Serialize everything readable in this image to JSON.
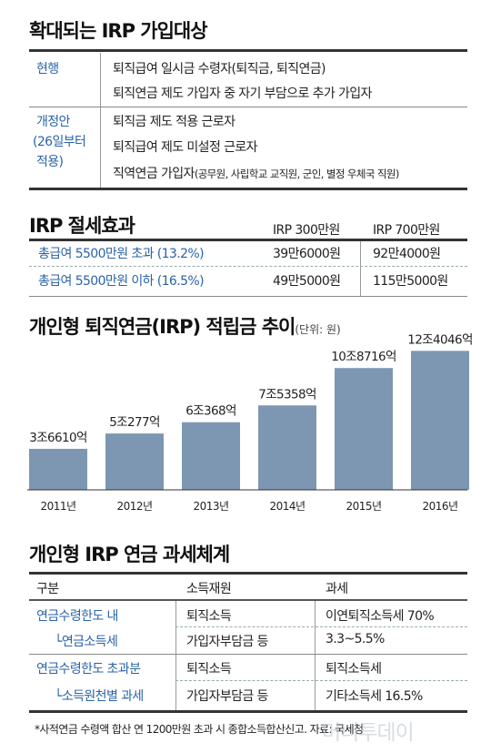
{
  "section1": {
    "title": "확대되는 IRP 가입대상",
    "current_label": "현행",
    "current_items": [
      "퇴직급여 일시금 수령자(퇴직금, 퇴직연금)",
      "퇴직연금 제도 가입자 중 자기 부담으로 추가 가입자"
    ],
    "revised_label": [
      "개정안",
      "(26일부터",
      "적용)"
    ],
    "revised_items": [
      "퇴직금 제도 적용 근로자",
      "퇴직급여 제도 미설정 근로자"
    ],
    "revised_last_prefix": "직역연금 가입자",
    "revised_last_suffix": "(공무원, 사립학교 교직원, 군인, 별정 우체국 직원)"
  },
  "section2": {
    "title": "IRP 절세효과",
    "col_headers": [
      "IRP 300만원",
      "IRP 700만원"
    ],
    "rows": [
      {
        "label": "총급여 5500만원 초과 (13.2%)",
        "v1": "39만6000원",
        "v2": "92만4000원"
      },
      {
        "label": "총급여 5500만원 이하 (16.5%)",
        "v1": "49만5000원",
        "v2": "115만5000원"
      }
    ]
  },
  "chart_data": {
    "type": "bar",
    "title": "개인형 퇴직연금(IRP) 적립금 추이",
    "unit_note": "(단위: 원)",
    "categories": [
      "2011년",
      "2012년",
      "2013년",
      "2014년",
      "2015년",
      "2016년"
    ],
    "values": [
      3.661,
      5.0277,
      6.0368,
      7.5358,
      10.8716,
      12.4046
    ],
    "value_unit": "조원",
    "labels": [
      "3조6610억",
      "5조277억",
      "6조368억",
      "7조5358억",
      "10조8716억",
      "12조4046억"
    ],
    "ylim": [
      0,
      13
    ],
    "bar_color": "#7d97b2"
  },
  "section3": {
    "title": "개인형 IRP 연금 과세체계",
    "headers": [
      "구분",
      "소득재원",
      "과세"
    ],
    "groups": [
      {
        "label": "연금수령한도 내",
        "sub": "└연금소득세",
        "rows": [
          [
            "퇴직소득",
            "이연퇴직소득세 70%"
          ],
          [
            "가입자부담금 등",
            "3.3~5.5%"
          ]
        ]
      },
      {
        "label": "연금수령한도 초과분",
        "sub": "└소득원천별 과세",
        "rows": [
          [
            "퇴직소득",
            "퇴직소득세"
          ],
          [
            "가입자부담금 등",
            "기타소득세 16.5%"
          ]
        ]
      }
    ]
  },
  "footnote": "*사적연금 수령액 합산 연 1200만원 초과 시 종합소득합산신고. 자료: 국세청",
  "watermark": "머니투데이"
}
